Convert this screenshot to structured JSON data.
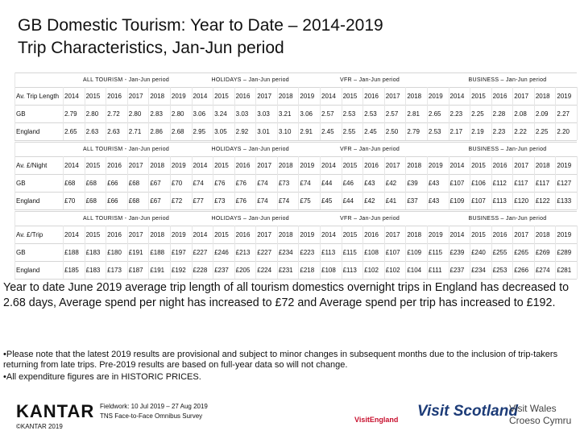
{
  "title": [
    "GB Domestic Tourism: Year to Date – 2014-2019",
    "Trip Characteristics, Jan-Jun period"
  ],
  "sections": [
    {
      "label": "Av. Trip Length",
      "groups": [
        {
          "name": "ALL TOURISM - Jan-Jun period",
          "years": [
            2014,
            2015,
            2016,
            2017,
            2018,
            2019
          ]
        },
        {
          "name": "HOLIDAYS – Jan-Jun period",
          "years": [
            2014,
            2015,
            2016,
            2017,
            2018,
            2019
          ]
        },
        {
          "name": "VFR – Jan-Jun period",
          "years": [
            2014,
            2015,
            2016,
            2017,
            2018,
            2019
          ]
        },
        {
          "name": "BUSINESS – Jan-Jun period",
          "years": [
            2014,
            2015,
            2016,
            2017,
            2018,
            2019
          ]
        }
      ],
      "rows": [
        {
          "label": "GB",
          "values": [
            "2.79",
            "2.80",
            "2.72",
            "2.80",
            "2.83",
            "2.80",
            "3.06",
            "3.24",
            "3.03",
            "3.03",
            "3.21",
            "3.06",
            "2.57",
            "2.53",
            "2.53",
            "2.57",
            "2.81",
            "2.65",
            "2.23",
            "2.25",
            "2.28",
            "2.08",
            "2.09",
            "2.27"
          ]
        },
        {
          "label": "England",
          "values": [
            "2.65",
            "2.63",
            "2.63",
            "2.71",
            "2.86",
            "2.68",
            "2.95",
            "3.05",
            "2.92",
            "3.01",
            "3.10",
            "2.91",
            "2.45",
            "2.55",
            "2.45",
            "2.50",
            "2.79",
            "2.53",
            "2.17",
            "2.19",
            "2.23",
            "2.22",
            "2.25",
            "2.20"
          ]
        }
      ]
    },
    {
      "label": "Av. £/Night",
      "groups": [
        {
          "name": "ALL TOURISM - Jan-Jun period",
          "years": [
            2014,
            2015,
            2016,
            2017,
            2018,
            2019
          ]
        },
        {
          "name": "HOLIDAYS – Jan-Jun period",
          "years": [
            2014,
            2015,
            2016,
            2017,
            2018,
            2019
          ]
        },
        {
          "name": "VFR – Jan-Jun period",
          "years": [
            2014,
            2015,
            2016,
            2017,
            2018,
            2019
          ]
        },
        {
          "name": "BUSINESS – Jan-Jun period",
          "years": [
            2014,
            2015,
            2016,
            2017,
            2018,
            2019
          ]
        }
      ],
      "rows": [
        {
          "label": "GB",
          "values": [
            "£68",
            "£68",
            "£66",
            "£68",
            "£67",
            "£70",
            "£74",
            "£76",
            "£76",
            "£74",
            "£73",
            "£74",
            "£44",
            "£46",
            "£43",
            "£42",
            "£39",
            "£43",
            "£107",
            "£106",
            "£112",
            "£117",
            "£117",
            "£127"
          ]
        },
        {
          "label": "England",
          "values": [
            "£70",
            "£68",
            "£66",
            "£68",
            "£67",
            "£72",
            "£77",
            "£73",
            "£76",
            "£74",
            "£74",
            "£75",
            "£45",
            "£44",
            "£42",
            "£41",
            "£37",
            "£43",
            "£109",
            "£107",
            "£113",
            "£120",
            "£122",
            "£133"
          ]
        }
      ]
    },
    {
      "label": "Av. £/Trip",
      "groups": [
        {
          "name": "ALL TOURISM - Jan-Jun period",
          "years": [
            2014,
            2015,
            2016,
            2017,
            2018,
            2019
          ]
        },
        {
          "name": "HOLIDAYS – Jan-Jun period",
          "years": [
            2014,
            2015,
            2016,
            2017,
            2018,
            2019
          ]
        },
        {
          "name": "VFR – Jan-Jun period",
          "years": [
            2014,
            2015,
            2016,
            2017,
            2018,
            2019
          ]
        },
        {
          "name": "BUSINESS – Jan-Jun period",
          "years": [
            2014,
            2015,
            2016,
            2017,
            2018,
            2019
          ]
        }
      ],
      "rows": [
        {
          "label": "GB",
          "values": [
            "£188",
            "£183",
            "£180",
            "£191",
            "£188",
            "£197",
            "£227",
            "£246",
            "£213",
            "£227",
            "£234",
            "£223",
            "£113",
            "£115",
            "£108",
            "£107",
            "£109",
            "£115",
            "£239",
            "£240",
            "£255",
            "£265",
            "£269",
            "£289"
          ]
        },
        {
          "label": "England",
          "values": [
            "£185",
            "£183",
            "£173",
            "£187",
            "£191",
            "£192",
            "£228",
            "£237",
            "£205",
            "£224",
            "£231",
            "£218",
            "£108",
            "£113",
            "£102",
            "£102",
            "£104",
            "£111",
            "£237",
            "£234",
            "£253",
            "£266",
            "£274",
            "£281"
          ]
        }
      ]
    }
  ],
  "summary": "Year to date June 2019 average trip length of all tourism domestics overnight trips in England has decreased to 2.68 days, Average spend per night has increased to £72 and Average spend per trip has increased to £192.",
  "notes": [
    "•Please note that the latest 2019 results are provisional and subject to minor changes in subsequent months due to the inclusion of trip-takers returning from late trips. Pre-2019 results are based on full-year data so will not change.",
    "•All expenditure figures are in HISTORIC PRICES."
  ],
  "footer": {
    "brand": "KANTAR",
    "copyright": "©KANTAR 2019",
    "fieldwork": "Fieldwork: 10 Jul 2019 – 27 Aug 2019",
    "survey": "TNS Face-to-Face Omnibus Survey",
    "logos": [
      "VisitEngland",
      "Visit Scotland",
      "Visit Wales",
      "Croeso Cymru"
    ]
  }
}
